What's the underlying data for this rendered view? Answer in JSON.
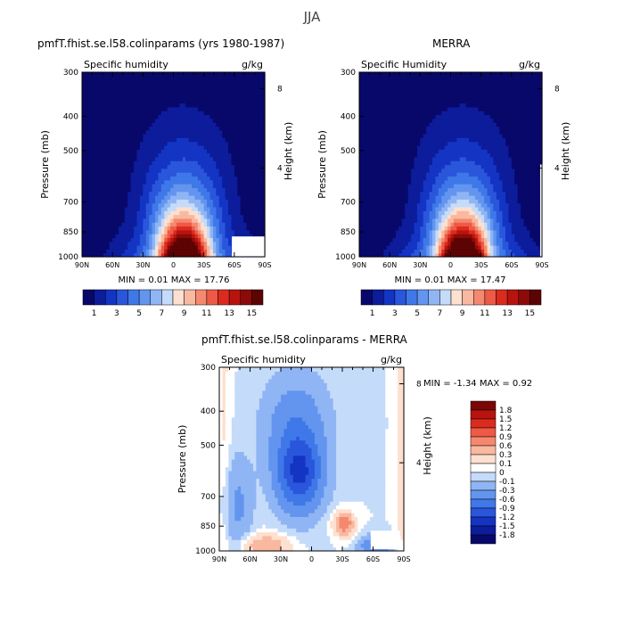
{
  "figure_title": "JJA",
  "pressure_label": "Pressure (mb)",
  "height_label": "Height (km)",
  "pressure_ticks": [
    "300",
    "400",
    "500",
    "700",
    "850",
    "1000"
  ],
  "lat_ticks": [
    "90N",
    "60N",
    "30N",
    "0",
    "30S",
    "60S",
    "90S"
  ],
  "height_ticks": [
    "8",
    "4"
  ],
  "panel_left": {
    "title": "pmfT.fhist.se.l58.colinparams (yrs 1980-1987)",
    "variable": "Specific humidity",
    "units": "g/kg",
    "min_max": "MIN =    0.01  MAX =   17.76"
  },
  "panel_right": {
    "title": "MERRA",
    "variable": "Specific Humidity",
    "units": "g/kg",
    "min_max": "MIN =    0.01  MAX =   17.47"
  },
  "panel_diff": {
    "title": "pmfT.fhist.se.l58.colinparams - MERRA",
    "variable": "Specific humidity",
    "units": "g/kg",
    "min_max": "MIN =   -1.34   MAX =    0.92"
  },
  "colorbar_abs": {
    "labels": [
      "1",
      "3",
      "5",
      "7",
      "9",
      "11",
      "13",
      "15"
    ],
    "colors": [
      "#08086b",
      "#0c1c9b",
      "#1434c4",
      "#2a56db",
      "#3f78e8",
      "#6395ef",
      "#8fb5f4",
      "#c5dbfa",
      "#fde0cf",
      "#f9b8a0",
      "#f4896f",
      "#ee5a45",
      "#db2b1f",
      "#b8140f",
      "#8c0a08",
      "#5c0303"
    ]
  },
  "colorbar_diff": {
    "labels": [
      "1.8",
      "1.5",
      "1.2",
      "0.9",
      "0.6",
      "0.3",
      "0.1",
      "0",
      "-0.1",
      "-0.3",
      "-0.6",
      "-0.9",
      "-1.2",
      "-1.5",
      "-1.8"
    ],
    "colors": [
      "#7a0606",
      "#b8140f",
      "#db2b1f",
      "#ee5a45",
      "#f4896f",
      "#f9b8a0",
      "#fde0cf",
      "#ffffff",
      "#c5dbfa",
      "#8fb5f4",
      "#6395ef",
      "#3f78e8",
      "#2a56db",
      "#1434c4",
      "#0c1c9b",
      "#08086b"
    ]
  },
  "chart_data": [
    {
      "type": "heatmap",
      "title": "pmfT.fhist.se.l58.colinparams (yrs 1980-1987)",
      "variable": "Specific humidity",
      "units": "g/kg",
      "xlabel": "",
      "ylabel": "Pressure (mb)",
      "y2label": "Height (km)",
      "x_range": [
        "90N",
        "90S"
      ],
      "y_range": [
        1000,
        300
      ],
      "min": 0.01,
      "max": 17.76,
      "peak": {
        "lat": 10,
        "pressure": 1000,
        "value": 17.76
      }
    },
    {
      "type": "heatmap",
      "title": "MERRA",
      "variable": "Specific Humidity",
      "units": "g/kg",
      "xlabel": "",
      "ylabel": "Pressure (mb)",
      "y2label": "Height (km)",
      "x_range": [
        "90N",
        "90S"
      ],
      "y_range": [
        1000,
        300
      ],
      "min": 0.01,
      "max": 17.47,
      "peak": {
        "lat": 10,
        "pressure": 1000,
        "value": 17.47
      }
    },
    {
      "type": "heatmap",
      "title": "pmfT.fhist.se.l58.colinparams - MERRA",
      "variable": "Specific humidity",
      "units": "g/kg",
      "xlabel": "",
      "ylabel": "Pressure (mb)",
      "y2label": "Height (km)",
      "x_range": [
        "90N",
        "90S"
      ],
      "y_range": [
        1000,
        300
      ],
      "min": -1.34,
      "max": 0.92,
      "dry_bias": {
        "lat_range": [
          30,
          -5
        ],
        "pressure_range": [
          750,
          550
        ]
      },
      "moist_bias": {
        "lat": -30,
        "pressure": 820
      }
    }
  ]
}
